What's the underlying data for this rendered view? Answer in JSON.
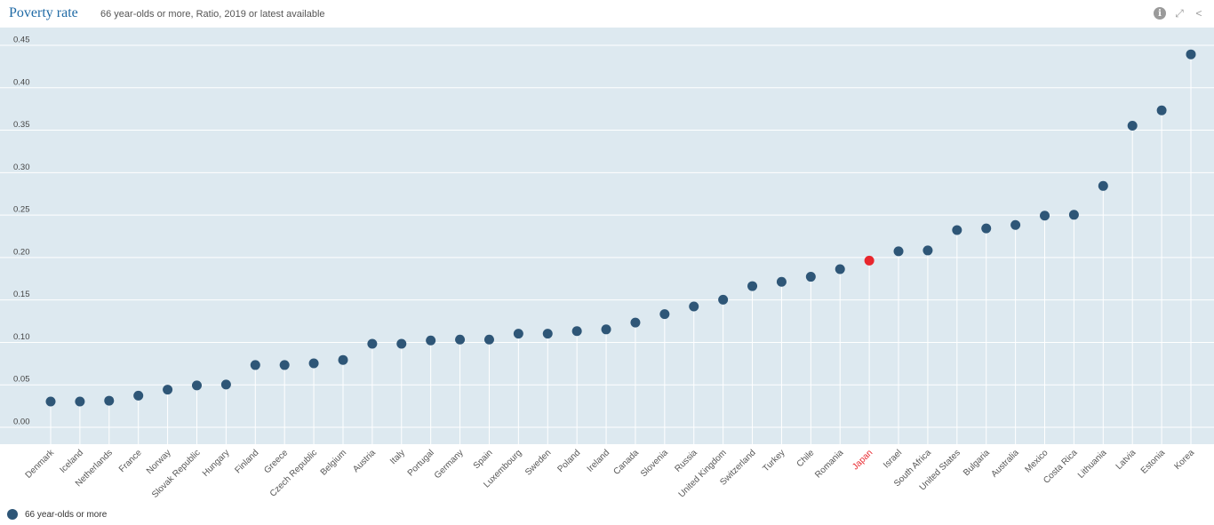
{
  "header": {
    "title": "Poverty rate",
    "subtitle": "66 year-olds or more, Ratio, 2019 or latest available",
    "tools": [
      {
        "name": "info-icon",
        "glyph": "i"
      },
      {
        "name": "fullscreen-icon",
        "glyph": "⤢"
      },
      {
        "name": "share-icon",
        "glyph": "<"
      }
    ]
  },
  "legend": {
    "label": "66 year-olds or more"
  },
  "colors": {
    "point": "#2e5677",
    "highlight": "#e8262d",
    "plot_bg": "#dde9f0",
    "stem": "#ffffff"
  },
  "chart_data": {
    "type": "scatter",
    "ylim": [
      0,
      0.45
    ],
    "yticks": [
      "0.00",
      "0.05",
      "0.10",
      "0.15",
      "0.20",
      "0.25",
      "0.30",
      "0.35",
      "0.40",
      "0.45"
    ],
    "highlight": "Japan",
    "categories": [
      "Denmark",
      "Iceland",
      "Netherlands",
      "France",
      "Norway",
      "Slovak Republic",
      "Hungary",
      "Finland",
      "Greece",
      "Czech Republic",
      "Belgium",
      "Austria",
      "Italy",
      "Portugal",
      "Germany",
      "Spain",
      "Luxembourg",
      "Sweden",
      "Poland",
      "Ireland",
      "Canada",
      "Slovenia",
      "Russia",
      "United Kingdom",
      "Switzerland",
      "Turkey",
      "Chile",
      "Romania",
      "Japan",
      "Israel",
      "South Africa",
      "United States",
      "Bulgaria",
      "Australia",
      "Mexico",
      "Costa Rica",
      "Lithuania",
      "Latvia",
      "Estonia",
      "Korea"
    ],
    "series": [
      {
        "name": "66 year-olds or more",
        "values": [
          0.023,
          0.023,
          0.024,
          0.03,
          0.037,
          0.042,
          0.043,
          0.066,
          0.066,
          0.068,
          0.072,
          0.091,
          0.091,
          0.095,
          0.096,
          0.096,
          0.103,
          0.103,
          0.106,
          0.108,
          0.116,
          0.126,
          0.135,
          0.143,
          0.159,
          0.164,
          0.17,
          0.179,
          0.189,
          0.2,
          0.201,
          0.225,
          0.227,
          0.231,
          0.242,
          0.243,
          0.277,
          0.348,
          0.366,
          0.432
        ]
      }
    ]
  }
}
